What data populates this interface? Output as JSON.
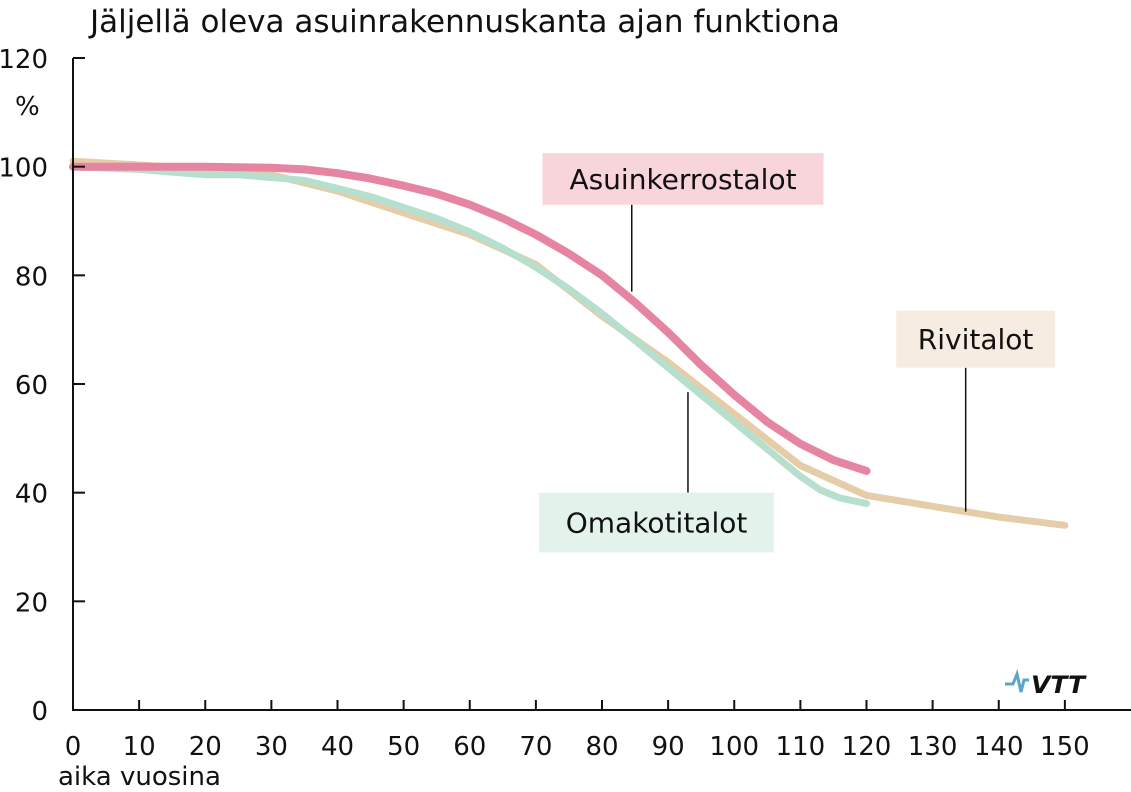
{
  "chart_data": {
    "type": "line",
    "title": "Jäljellä oleva asuinrakennuskanta ajan funktiona",
    "xlabel": "aika vuosina",
    "ylabel": "%",
    "xlim": [
      0,
      160
    ],
    "ylim": [
      0,
      120
    ],
    "x_ticks": [
      0,
      10,
      20,
      30,
      40,
      50,
      60,
      70,
      80,
      90,
      100,
      110,
      120,
      130,
      140,
      150
    ],
    "y_ticks": [
      0,
      20,
      40,
      60,
      80,
      100,
      120
    ],
    "grid": false,
    "series": [
      {
        "name": "Rivitalot",
        "color": "#e5cda9",
        "label_bg": "#f7ece1",
        "points": [
          [
            0,
            101
          ],
          [
            10,
            100.3
          ],
          [
            20,
            99.5
          ],
          [
            30,
            98.5
          ],
          [
            40,
            95.5
          ],
          [
            50,
            91.5
          ],
          [
            60,
            87.5
          ],
          [
            70,
            82
          ],
          [
            80,
            72.5
          ],
          [
            90,
            64
          ],
          [
            100,
            54.5
          ],
          [
            110,
            45
          ],
          [
            120,
            39.5
          ],
          [
            130,
            37.5
          ],
          [
            140,
            35.5
          ],
          [
            150,
            34
          ]
        ]
      },
      {
        "name": "Omakotitalot",
        "color": "#b6dfcd",
        "label_bg": "#e3f2eb",
        "points": [
          [
            0,
            100
          ],
          [
            10,
            99.5
          ],
          [
            15,
            99
          ],
          [
            20,
            98.5
          ],
          [
            25,
            98.5
          ],
          [
            30,
            98
          ],
          [
            35,
            97.5
          ],
          [
            40,
            96
          ],
          [
            45,
            94.5
          ],
          [
            50,
            92.5
          ],
          [
            55,
            90.5
          ],
          [
            60,
            88
          ],
          [
            65,
            85
          ],
          [
            70,
            81.5
          ],
          [
            75,
            77.5
          ],
          [
            80,
            73
          ],
          [
            85,
            68
          ],
          [
            90,
            63
          ],
          [
            95,
            58
          ],
          [
            100,
            53
          ],
          [
            105,
            48
          ],
          [
            110,
            43
          ],
          [
            113,
            40.5
          ],
          [
            116,
            39
          ],
          [
            120,
            38
          ]
        ]
      },
      {
        "name": "Asuinkerrostalot",
        "color": "#e585a2",
        "label_bg": "#f7d5da",
        "points": [
          [
            0,
            100
          ],
          [
            10,
            100
          ],
          [
            20,
            100
          ],
          [
            30,
            99.8
          ],
          [
            35,
            99.5
          ],
          [
            40,
            98.8
          ],
          [
            45,
            97.8
          ],
          [
            50,
            96.5
          ],
          [
            55,
            95
          ],
          [
            60,
            93
          ],
          [
            65,
            90.5
          ],
          [
            70,
            87.5
          ],
          [
            75,
            84
          ],
          [
            80,
            80
          ],
          [
            85,
            75
          ],
          [
            90,
            69.5
          ],
          [
            95,
            63.5
          ],
          [
            100,
            58
          ],
          [
            105,
            53
          ],
          [
            110,
            49
          ],
          [
            115,
            46
          ],
          [
            120,
            44
          ]
        ]
      }
    ]
  },
  "logo": {
    "name": "vtt-logo",
    "text": "VTT",
    "color": "#2a3a6b",
    "accent": "#5aa6c8"
  }
}
